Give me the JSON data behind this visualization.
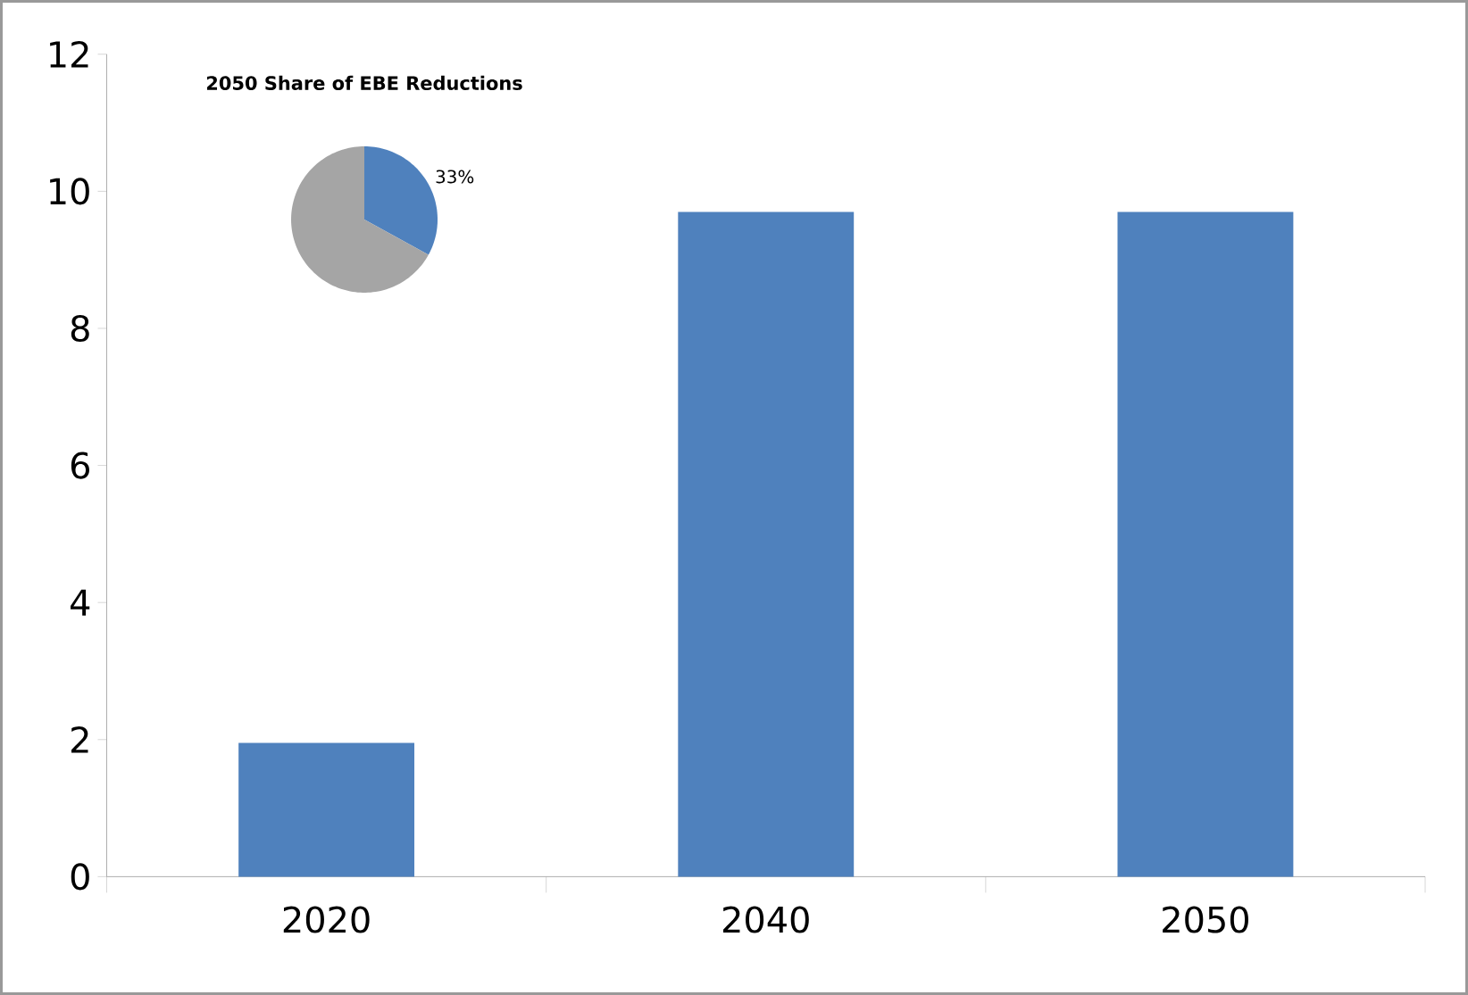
{
  "chart_data": [
    {
      "type": "bar",
      "categories": [
        "2020",
        "2040",
        "2050"
      ],
      "values": [
        1.95,
        9.7,
        9.7
      ],
      "color": "#4f81bd",
      "ylim": [
        0,
        12
      ],
      "yticks": [
        0,
        2,
        4,
        6,
        8,
        10,
        12
      ]
    },
    {
      "type": "pie",
      "title": "2050 Share of EBE Reductions",
      "categories": [
        null,
        null
      ],
      "values": [
        33,
        67
      ],
      "colors": [
        "#4f81bd",
        "#a5a5a5"
      ],
      "value_labels": [
        "33%",
        null
      ]
    }
  ]
}
